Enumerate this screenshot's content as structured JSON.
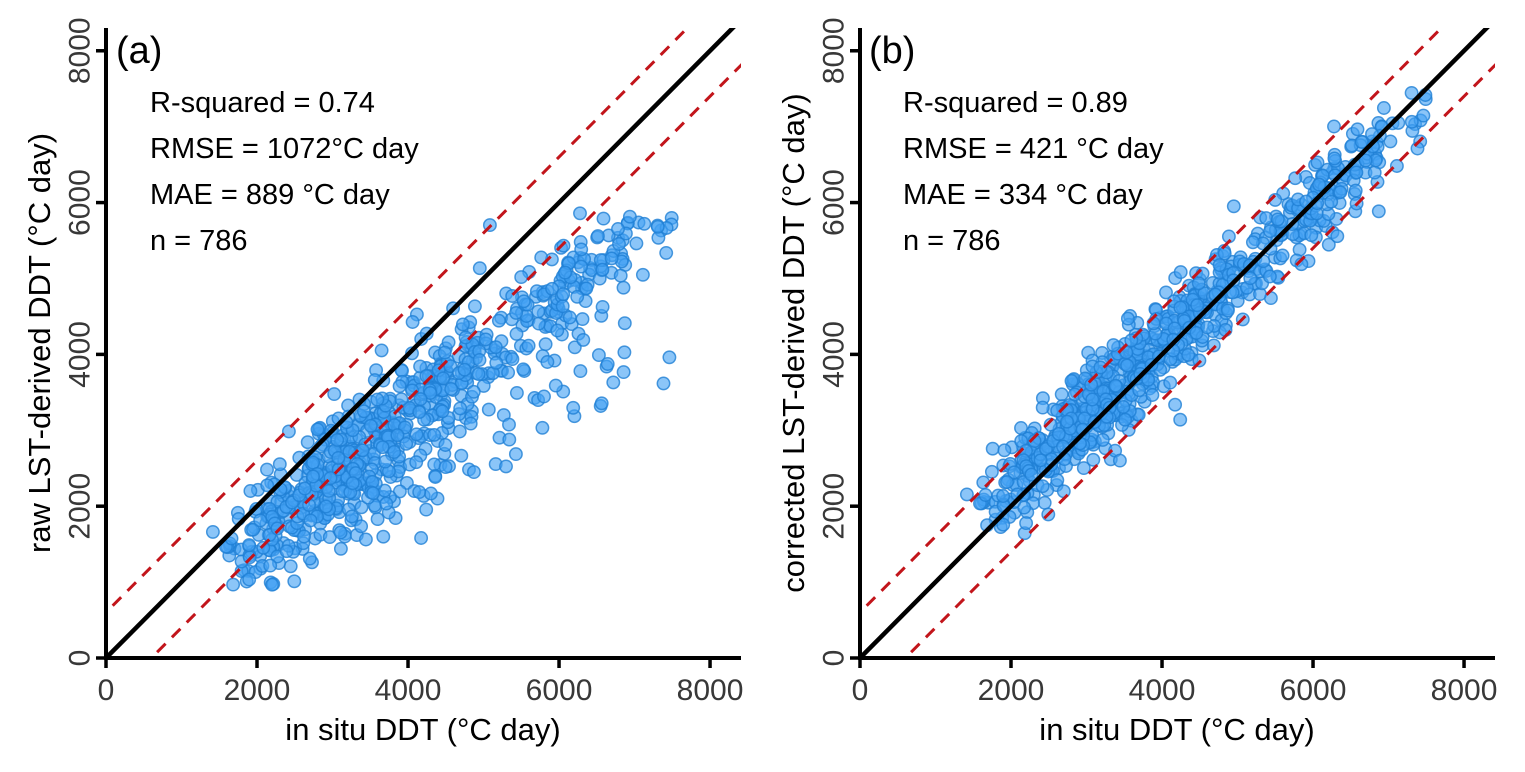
{
  "page": {
    "background": "#ffffff"
  },
  "panels": [
    {
      "letter": "(a)",
      "x_axis_title": "in situ DDT (°C day)",
      "y_axis_title": "raw LST-derived DDT (°C day)",
      "stats_lines": [
        "R-squared = 0.74",
        "RMSE = 1072°C day",
        "MAE = 889 °C day",
        "n = 786"
      ]
    },
    {
      "letter": "(b)",
      "x_axis_title": "in situ DDT (°C day)",
      "y_axis_title": "corrected LST-derived DDT (°C day)",
      "stats_lines": [
        "R-squared = 0.89",
        "RMSE = 421 °C day",
        "MAE = 334 °C day",
        "n = 786"
      ]
    }
  ],
  "chart_data": [
    {
      "type": "scatter",
      "panel": "a",
      "title": "(a)",
      "xlabel": "in situ DDT (°C day)",
      "ylabel": "raw LST-derived DDT (°C day)",
      "xlim": [
        0,
        8410
      ],
      "ylim": [
        0,
        8300
      ],
      "xticks": [
        0,
        2000,
        4000,
        6000,
        8000
      ],
      "yticks": [
        0,
        2000,
        4000,
        6000,
        8000
      ],
      "grid": false,
      "legend": "none",
      "annotations": [
        "R-squared = 0.74",
        "RMSE = 1072°C day",
        "MAE = 889 °C day",
        "n = 786"
      ],
      "stats": {
        "r_squared": 0.74,
        "rmse_c_day": 1072,
        "mae_c_day": 889,
        "n": 786
      },
      "data_extent": {
        "x": [
          1350,
          7600
        ],
        "y": [
          950,
          5900
        ]
      },
      "reference_lines": [
        {
          "name": "one-to-one-line",
          "type": "identity",
          "offset": 0,
          "style": "solid",
          "color": "#000000",
          "width": 4.5
        },
        {
          "name": "upper-error-band-line",
          "type": "identity_offset",
          "offset": 600,
          "style": "dashed",
          "dash": "12 9",
          "color": "#c2151b",
          "width": 3
        },
        {
          "name": "lower-error-band-line",
          "type": "identity_offset",
          "offset": -600,
          "style": "dashed",
          "dash": "12 9",
          "color": "#c2151b",
          "width": 3
        }
      ],
      "point_style": {
        "fill": "#44a1f3",
        "fill_opacity": 0.62,
        "stroke": "#1f7fd4",
        "stroke_opacity": 0.8,
        "stroke_width": 1.5,
        "radius_px": 6.2
      },
      "synthesis": {
        "seed": 20240707,
        "n": 786,
        "mix": [
          0.7,
          0.93
        ],
        "x_base": [
          1400,
          4300,
          1.2
        ],
        "x_mid": [
          4200,
          2700
        ],
        "x_high": [
          5700,
          1900
        ],
        "sub_frac": 0.12,
        "sub": [
          0.52,
          200,
          260
        ],
        "main": [
          0.78,
          80,
          370
        ],
        "hi_frac": 0.985,
        "hi_span": 750,
        "hi_xmax": 5200,
        "above_cap": 900,
        "y_max": 5900,
        "fold": 260,
        "y_min": 950
      }
    },
    {
      "type": "scatter",
      "panel": "b",
      "title": "(b)",
      "xlabel": "in situ DDT (°C day)",
      "ylabel": "corrected LST-derived DDT (°C day)",
      "xlim": [
        0,
        8410
      ],
      "ylim": [
        0,
        8300
      ],
      "xticks": [
        0,
        2000,
        4000,
        6000,
        8000
      ],
      "yticks": [
        0,
        2000,
        4000,
        6000,
        8000
      ],
      "grid": false,
      "legend": "none",
      "annotations": [
        "R-squared = 0.89",
        "RMSE = 421 °C day",
        "MAE = 334 °C day",
        "n = 786"
      ],
      "stats": {
        "r_squared": 0.89,
        "rmse_c_day": 421,
        "mae_c_day": 334,
        "n": 786
      },
      "data_extent": {
        "x": [
          1350,
          7600
        ],
        "y": [
          1250,
          7450
        ]
      },
      "reference_lines": [
        {
          "name": "one-to-one-line",
          "type": "identity",
          "offset": 0,
          "style": "solid",
          "color": "#000000",
          "width": 4.5
        },
        {
          "name": "upper-error-band-line",
          "type": "identity_offset",
          "offset": 600,
          "style": "dashed",
          "dash": "12 9",
          "color": "#c2151b",
          "width": 3
        },
        {
          "name": "lower-error-band-line",
          "type": "identity_offset",
          "offset": -600,
          "style": "dashed",
          "dash": "12 9",
          "color": "#c2151b",
          "width": 3
        }
      ],
      "point_style": {
        "fill": "#44a1f3",
        "fill_opacity": 0.62,
        "stroke": "#1f7fd4",
        "stroke_opacity": 0.8,
        "stroke_width": 1.5,
        "radius_px": 6.2
      },
      "synthesis": {
        "seed": 20240707,
        "n": 786,
        "mix": [
          0.7,
          0.93
        ],
        "x_base": [
          1400,
          4300,
          1.2
        ],
        "x_mid": [
          4200,
          2700
        ],
        "x_high": [
          5700,
          1900
        ],
        "sub_frac": 0.0,
        "sub": [
          0.915,
          460,
          310
        ],
        "main": [
          0.915,
          460,
          310
        ],
        "hi_frac": 1.01,
        "hi_span": 0,
        "hi_xmax": 0,
        "above_cap": 1000,
        "y_max": 7450,
        "fold": 220,
        "y_min": 1150
      }
    }
  ]
}
